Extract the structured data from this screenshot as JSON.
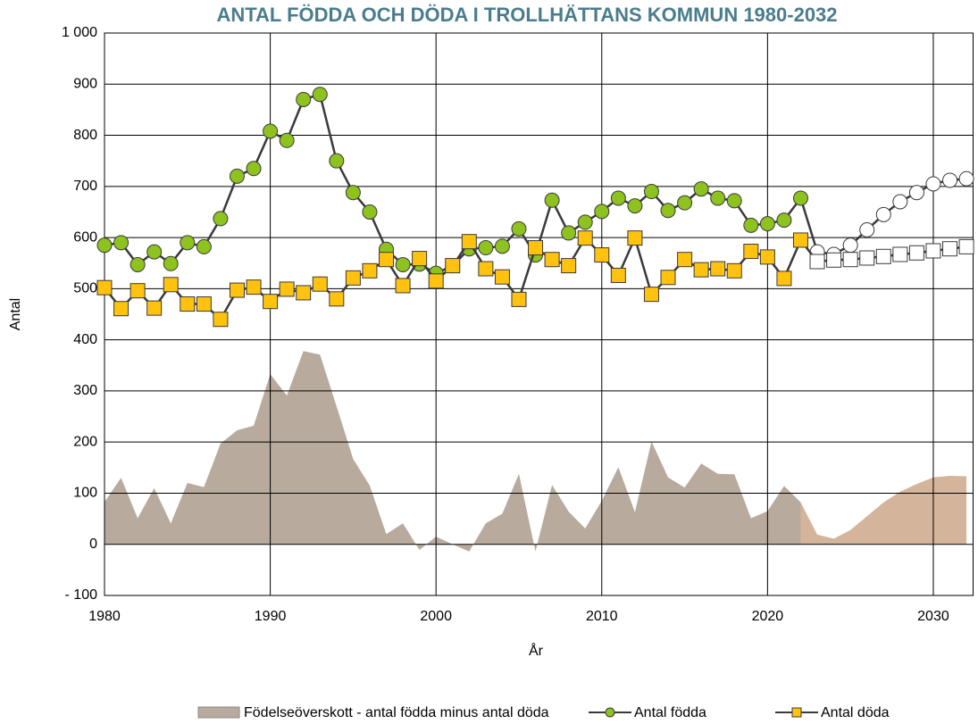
{
  "chart_data": {
    "type": "line",
    "title": "ANTAL FÖDDA OCH DÖDA I TROLLHÄTTANS KOMMUN 1980-2032",
    "title_color": "#4a7d8c",
    "x_label": "År",
    "y_label": "Antal",
    "x": [
      1980,
      1981,
      1982,
      1983,
      1984,
      1985,
      1986,
      1987,
      1988,
      1989,
      1990,
      1991,
      1992,
      1993,
      1994,
      1995,
      1996,
      1997,
      1998,
      1999,
      2000,
      2001,
      2002,
      2003,
      2004,
      2005,
      2006,
      2007,
      2008,
      2009,
      2010,
      2011,
      2012,
      2013,
      2014,
      2015,
      2016,
      2017,
      2018,
      2019,
      2020,
      2021,
      2022,
      2023,
      2024,
      2025,
      2026,
      2027,
      2028,
      2029,
      2030,
      2031,
      2032
    ],
    "projected_from": 2022,
    "series": [
      {
        "name": "Födelseöverskott - antal födda minus antal döda",
        "kind": "area",
        "color": "#b8aa9c",
        "projected_color": "#d4b49a",
        "values": [
          83,
          130,
          51,
          110,
          41,
          120,
          112,
          197,
          223,
          232,
          333,
          291,
          378,
          371,
          270,
          167,
          115,
          20,
          41,
          -11,
          15,
          0,
          -14,
          41,
          60,
          138,
          -14,
          116,
          64,
          31,
          85,
          151,
          63,
          201,
          131,
          111,
          158,
          138,
          137,
          51,
          65,
          114,
          82,
          19,
          11,
          28,
          55,
          82,
          103,
          118,
          131,
          134,
          133
        ]
      },
      {
        "name": "Antal födda",
        "kind": "line",
        "marker": "circle",
        "color": "#3a3a3a",
        "marker_color": "#8dc21f",
        "projected_marker_color": "#ffffff",
        "values": [
          585,
          590,
          547,
          572,
          549,
          590,
          582,
          637,
          720,
          735,
          808,
          790,
          870,
          880,
          750,
          688,
          650,
          577,
          547,
          548,
          530,
          545,
          578,
          580,
          583,
          617,
          566,
          673,
          609,
          630,
          651,
          677,
          662,
          690,
          653,
          668,
          695,
          677,
          672,
          624,
          627,
          634,
          677,
          572,
          567,
          585,
          615,
          645,
          670,
          688,
          705,
          712,
          715
        ]
      },
      {
        "name": "Antal döda",
        "kind": "line",
        "marker": "square",
        "color": "#3a3a3a",
        "marker_color": "#ffc20e",
        "projected_marker_color": "#ffffff",
        "values": [
          502,
          461,
          496,
          462,
          508,
          470,
          470,
          440,
          497,
          503,
          475,
          499,
          492,
          509,
          480,
          521,
          535,
          557,
          506,
          559,
          515,
          545,
          592,
          539,
          523,
          479,
          580,
          557,
          545,
          599,
          566,
          526,
          599,
          489,
          522,
          557,
          537,
          539,
          535,
          573,
          562,
          520,
          595,
          553,
          556,
          557,
          560,
          563,
          567,
          570,
          574,
          578,
          582
        ]
      }
    ],
    "xlim": [
      1980,
      2032.4
    ],
    "xticks": [
      1980,
      1990,
      2000,
      2010,
      2020,
      2030
    ],
    "ylim": [
      -100,
      1000
    ],
    "yticks": [
      {
        "value": -100,
        "label": "- 100"
      },
      0,
      100,
      200,
      300,
      400,
      500,
      600,
      700,
      800,
      900,
      {
        "value": 1000,
        "label": "1 000"
      }
    ],
    "grid": true,
    "legend": "bottom"
  }
}
